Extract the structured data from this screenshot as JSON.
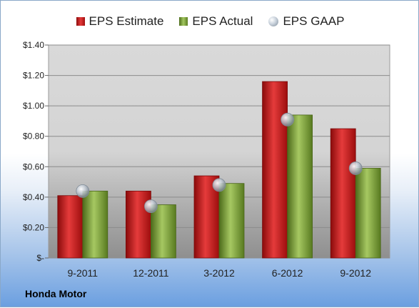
{
  "chart_data": {
    "type": "bar",
    "title": "",
    "xlabel": "",
    "ylabel": "",
    "categories": [
      "9-2011",
      "12-2011",
      "3-2012",
      "6-2012",
      "9-2012"
    ],
    "series": [
      {
        "name": "EPS Estimate",
        "kind": "bar",
        "color": "#c91f1f",
        "values": [
          0.41,
          0.44,
          0.54,
          1.16,
          0.85
        ]
      },
      {
        "name": "EPS Actual",
        "kind": "bar",
        "color": "#7fa33d",
        "values": [
          0.44,
          0.35,
          0.49,
          0.94,
          0.59
        ]
      },
      {
        "name": "EPS GAAP",
        "kind": "marker",
        "color": "#b4bcc6",
        "values": [
          0.44,
          0.34,
          0.48,
          0.91,
          0.59
        ]
      }
    ],
    "ylim": [
      0,
      1.4
    ],
    "yticks": [
      0,
      0.2,
      0.4,
      0.6,
      0.8,
      1.0,
      1.2,
      1.4
    ],
    "ytick_labels": [
      "$-",
      "$0.20",
      "$0.40",
      "$0.60",
      "$0.80",
      "$1.00",
      "$1.20",
      "$1.40"
    ],
    "grid": true,
    "legend_position": "top"
  },
  "company": "Honda Motor"
}
